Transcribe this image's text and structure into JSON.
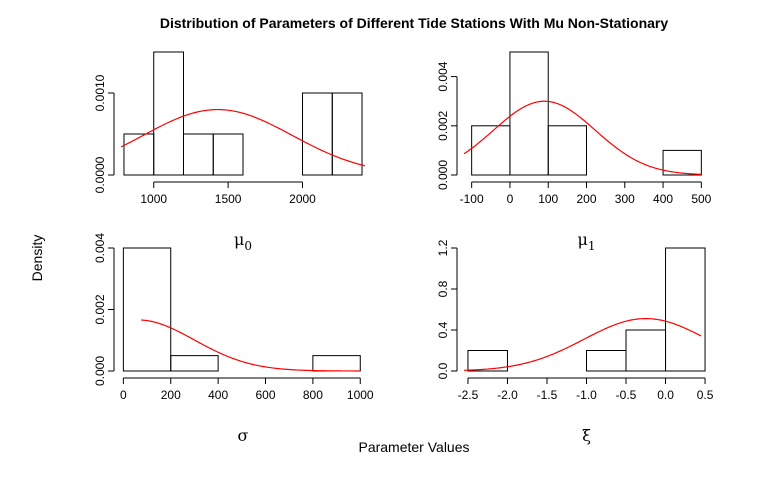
{
  "title": "Distribution of Parameters of Different Tide Stations With Mu Non-Stationary",
  "xlabel": "Parameter Values",
  "ylabel": "Density",
  "chart_data": [
    {
      "type": "bar",
      "label_main": "μ",
      "label_sub": "0",
      "xlim": [
        780,
        2420
      ],
      "ylim": [
        0,
        0.0015
      ],
      "xticks": [
        1000,
        1500,
        2000
      ],
      "yticks": [
        0.0,
        0.001
      ],
      "ytick_labels": [
        "0.0000",
        "0.0010"
      ],
      "bins": [
        {
          "x0": 800,
          "x1": 1000,
          "density": 0.0005
        },
        {
          "x0": 1000,
          "x1": 1200,
          "density": 0.0015
        },
        {
          "x0": 1200,
          "x1": 1400,
          "density": 0.0005
        },
        {
          "x0": 1400,
          "x1": 1600,
          "density": 0.0005
        },
        {
          "x0": 1600,
          "x1": 1800,
          "density": 0.0
        },
        {
          "x0": 1800,
          "x1": 2000,
          "density": 0.0
        },
        {
          "x0": 2000,
          "x1": 2200,
          "density": 0.001
        },
        {
          "x0": 2200,
          "x1": 2400,
          "density": 0.001
        }
      ],
      "fit": {
        "dist": "normal",
        "mean": 1430,
        "sd": 500,
        "from": 780,
        "to": 2420,
        "color": "#ff0000"
      }
    },
    {
      "type": "bar",
      "label_main": "μ",
      "label_sub": "1",
      "xlim": [
        -120,
        520
      ],
      "ylim": [
        0,
        0.005
      ],
      "xticks": [
        -100,
        0,
        100,
        200,
        300,
        400,
        500
      ],
      "yticks": [
        0.0,
        0.002,
        0.004
      ],
      "ytick_labels": [
        "0.000",
        "0.002",
        "0.004"
      ],
      "bins": [
        {
          "x0": -100,
          "x1": 0,
          "density": 0.002
        },
        {
          "x0": 0,
          "x1": 100,
          "density": 0.005
        },
        {
          "x0": 100,
          "x1": 200,
          "density": 0.002
        },
        {
          "x0": 200,
          "x1": 300,
          "density": 0.0
        },
        {
          "x0": 300,
          "x1": 400,
          "density": 0.0
        },
        {
          "x0": 400,
          "x1": 500,
          "density": 0.001
        }
      ],
      "fit": {
        "dist": "normal",
        "mean": 90,
        "sd": 133,
        "from": -120,
        "to": 500,
        "color": "#ff0000"
      }
    },
    {
      "type": "bar",
      "label_main": "σ",
      "label_sub": "",
      "xlim": [
        -10,
        1020
      ],
      "ylim": [
        0,
        0.004
      ],
      "xticks": [
        0,
        200,
        400,
        600,
        800,
        1000
      ],
      "yticks": [
        0.0,
        0.002,
        0.004
      ],
      "ytick_labels": [
        "0.000",
        "0.002",
        "0.004"
      ],
      "bins": [
        {
          "x0": 0,
          "x1": 200,
          "density": 0.004
        },
        {
          "x0": 200,
          "x1": 400,
          "density": 0.0005
        },
        {
          "x0": 400,
          "x1": 600,
          "density": 0.0
        },
        {
          "x0": 600,
          "x1": 800,
          "density": 0.0
        },
        {
          "x0": 800,
          "x1": 1000,
          "density": 0.0005
        }
      ],
      "fit": {
        "dist": "normal",
        "mean": 60,
        "sd": 240,
        "from": 75,
        "to": 1000,
        "color": "#ff0000"
      }
    },
    {
      "type": "bar",
      "label_main": "ξ",
      "label_sub": "",
      "xlim": [
        -2.55,
        0.55
      ],
      "ylim": [
        0,
        1.2
      ],
      "xticks": [
        -2.5,
        -2.0,
        -1.5,
        -1.0,
        -0.5,
        0.0,
        0.5
      ],
      "xtick_labels": [
        "-2.5",
        "-2.0",
        "-1.5",
        "-1.0",
        "-0.5",
        "0.0",
        "0.5"
      ],
      "yticks": [
        0.0,
        0.4,
        0.8,
        1.2
      ],
      "ytick_labels": [
        "0.0",
        "0.4",
        "0.8",
        "1.2"
      ],
      "bins": [
        {
          "x0": -2.5,
          "x1": -2.0,
          "density": 0.2
        },
        {
          "x0": -2.0,
          "x1": -1.5,
          "density": 0.0
        },
        {
          "x0": -1.5,
          "x1": -1.0,
          "density": 0.0
        },
        {
          "x0": -1.0,
          "x1": -0.5,
          "density": 0.2
        },
        {
          "x0": -0.5,
          "x1": 0.0,
          "density": 0.4
        },
        {
          "x0": 0.0,
          "x1": 0.5,
          "density": 1.2
        }
      ],
      "fit": {
        "dist": "normal",
        "mean": -0.25,
        "sd": 0.78,
        "from": -2.55,
        "to": 0.45,
        "color": "#ff0000"
      }
    }
  ]
}
